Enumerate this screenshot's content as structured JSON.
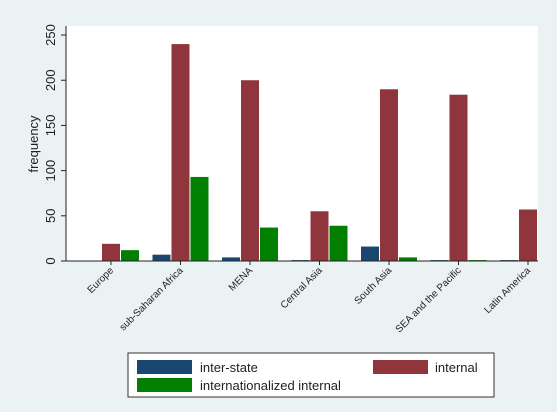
{
  "chart_data": {
    "type": "bar",
    "title": "",
    "xlabel": "",
    "ylabel": "frequency",
    "ylim": [
      0,
      260
    ],
    "yticks": [
      0,
      50,
      100,
      150,
      200,
      250
    ],
    "categories": [
      "Europe",
      "sub-Saharan Africa",
      "MENA",
      "Central Asia",
      "South Asia",
      "SEA and the Pacific",
      "Latin America"
    ],
    "series": [
      {
        "name": "inter-state",
        "color": "#1a476f",
        "values": [
          0,
          7,
          4,
          1,
          16,
          1,
          1
        ]
      },
      {
        "name": "internal",
        "color": "#90353b",
        "values": [
          19,
          240,
          200,
          55,
          190,
          184,
          57
        ]
      },
      {
        "name": "internationalized internal",
        "color": "#007f00",
        "values": [
          12,
          93,
          37,
          39,
          4,
          1,
          0
        ]
      }
    ],
    "grid": false,
    "legend_placement": "bottom",
    "background": "#eaf2f3",
    "plot_background": "#ffffff"
  }
}
